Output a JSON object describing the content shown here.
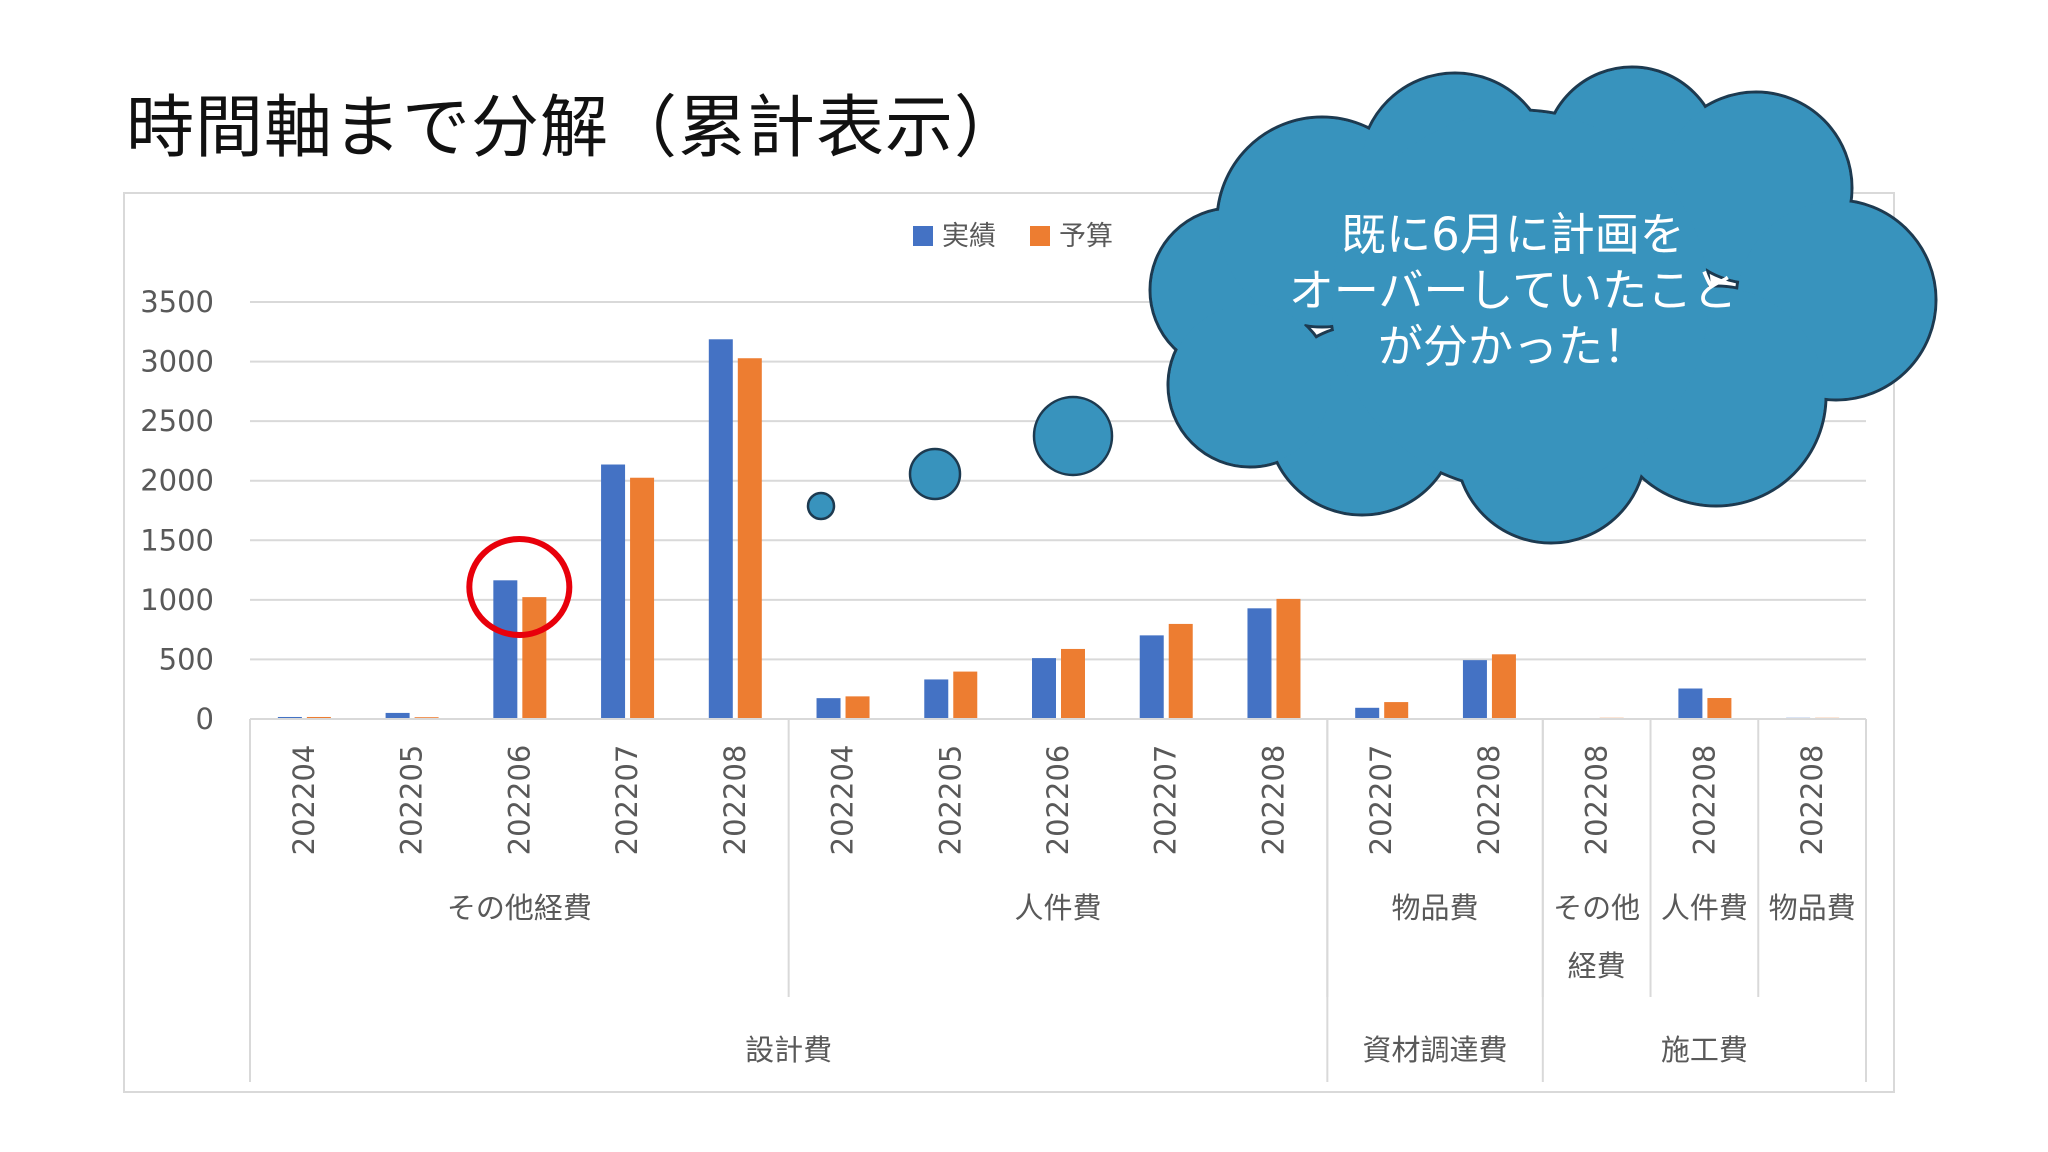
{
  "slide": {
    "title": "時間軸まで分解（累計表示）",
    "callout_lines": [
      "既に6月に計画を",
      "オーバーしていたこと",
      "が分かった！"
    ],
    "colors": {
      "actual": "#4472C4",
      "budget": "#ED7D31",
      "cloud": "#3893BD",
      "highlight": "#E8000B"
    }
  },
  "chart_data": {
    "type": "bar",
    "title": "",
    "xlabel": "",
    "ylabel": "",
    "ylim": [
      0,
      3500
    ],
    "yticks": [
      "0",
      "500",
      "1000",
      "1500",
      "2000",
      "2500",
      "3000",
      "3500"
    ],
    "grid": true,
    "legend_position": "top",
    "categories": [
      "202204",
      "202205",
      "202206",
      "202207",
      "202208",
      "202204",
      "202205",
      "202206",
      "202207",
      "202208",
      "202207",
      "202208",
      "202208",
      "202208",
      "202208"
    ],
    "level2": [
      {
        "label": "その他経費",
        "span": 5
      },
      {
        "label": "人件費",
        "span": 5
      },
      {
        "label": "物品費",
        "span": 2
      },
      {
        "label": "その他経費",
        "lines": [
          "その他",
          "経費"
        ],
        "span": 1
      },
      {
        "label": "人件費",
        "span": 1
      },
      {
        "label": "物品費",
        "span": 1
      }
    ],
    "level3": [
      {
        "label": "設計費",
        "span": 10
      },
      {
        "label": "資材調達費",
        "span": 2
      },
      {
        "label": "施工費",
        "span": 3
      }
    ],
    "series": [
      {
        "name": "実績",
        "values": [
          17,
          51,
          1164,
          2136,
          3187,
          175,
          332,
          511,
          702,
          929,
          94,
          494,
          0,
          256,
          10
        ]
      },
      {
        "name": "予算",
        "values": [
          17,
          15,
          1023,
          2025,
          3028,
          190,
          398,
          588,
          798,
          1008,
          142,
          543,
          10,
          176,
          10
        ]
      }
    ],
    "highlight_category_index": 2
  }
}
